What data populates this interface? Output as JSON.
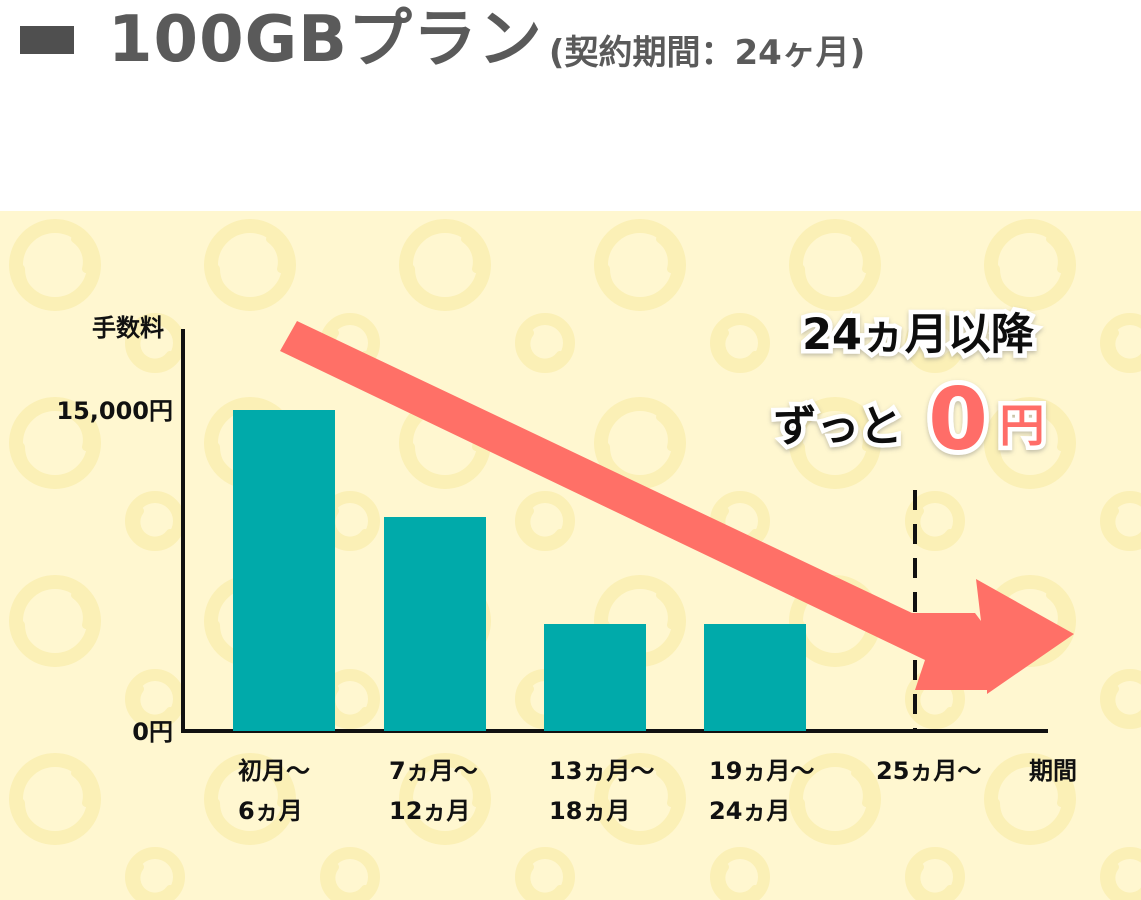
{
  "header": {
    "title": "100GBプラン",
    "subtitle": "(契約期間：24ヶ月)"
  },
  "colors": {
    "bar": "#00aaaa",
    "arrow": "#ff7067",
    "axis": "#111111",
    "panel": "#fff7d0",
    "pattern": "#fbf0b6",
    "heading_text": "#5a5a5a"
  },
  "chart_data": {
    "type": "bar",
    "title": "",
    "xlabel": "期間",
    "ylabel": "手数料",
    "categories": [
      [
        "初月〜",
        "6ヵ月"
      ],
      [
        "7ヵ月〜",
        "12ヵ月"
      ],
      [
        "13ヵ月〜",
        "18ヵ月"
      ],
      [
        "19ヵ月〜",
        "24ヵ月"
      ],
      [
        "25ヵ月〜"
      ]
    ],
    "values": [
      15000,
      10000,
      5000,
      5000,
      0
    ],
    "y_tick_labels": [
      {
        "value": 0,
        "label": "0円"
      },
      {
        "value": 15000,
        "label": "15,000円"
      }
    ],
    "ylim": [
      0,
      15000
    ],
    "divider_after_category": 4,
    "divider_style": "dashed",
    "annotation": {
      "line1": "24ヵ月以降",
      "line2_prefix": "ずっと",
      "highlight_number": "0",
      "highlight_unit": "円"
    },
    "trend_arrow": "downward-right"
  }
}
